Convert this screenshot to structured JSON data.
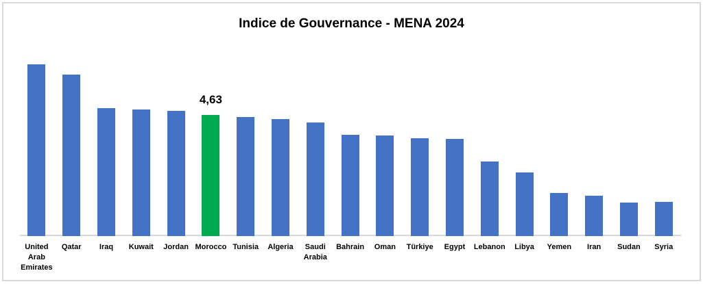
{
  "window": {
    "background": "#FFFFFF",
    "border_color": "#D9D9D9"
  },
  "chart_data": {
    "type": "bar",
    "title": "Indice de Gouvernance - MENA 2024",
    "categories": [
      "United Arab Emirates",
      "Qatar",
      "Iraq",
      "Kuwait",
      "Jordan",
      "Morocco",
      "Tunisia",
      "Algeria",
      "Saudi Arabia",
      "Bahrain",
      "Oman",
      "Türkiye",
      "Egypt",
      "Lebanon",
      "Libya",
      "Yemen",
      "Iran",
      "Sudan",
      "Syria"
    ],
    "values": [
      6.55,
      6.16,
      4.89,
      4.84,
      4.78,
      4.63,
      4.54,
      4.47,
      4.33,
      3.87,
      3.83,
      3.73,
      3.7,
      2.85,
      2.44,
      1.64,
      1.55,
      1.29,
      1.3
    ],
    "highlight": {
      "category": "Morocco",
      "value": 4.63,
      "label": "4,63",
      "color": "#00AB4F"
    },
    "bar_color": "#4472C4",
    "axis_line_color": "#D9D9D9",
    "xlabel": "",
    "ylabel": "",
    "ylim": [
      0,
      7
    ],
    "gridlines": false,
    "y_axis_visible": false,
    "legend": "none"
  }
}
